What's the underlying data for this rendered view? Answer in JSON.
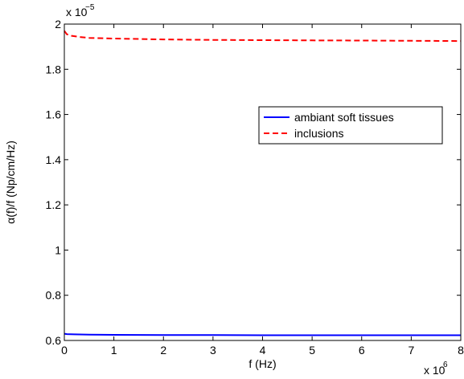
{
  "chart_data": {
    "type": "line",
    "title": "",
    "xlabel": "f (Hz)",
    "ylabel": "α(f)/f (Np/cm/Hz)",
    "x_multiplier": "x 10",
    "x_multiplier_exp": "6",
    "y_multiplier": "x 10",
    "y_multiplier_exp": "−5",
    "xlim": [
      0,
      8
    ],
    "ylim": [
      0.6,
      2.0
    ],
    "x_ticks": [
      0,
      1,
      2,
      3,
      4,
      5,
      6,
      7,
      8
    ],
    "x_tick_labels": [
      "0",
      "1",
      "2",
      "3",
      "4",
      "5",
      "6",
      "7",
      "8"
    ],
    "y_ticks": [
      0.6,
      0.8,
      1.0,
      1.2,
      1.4,
      1.6,
      1.8,
      2.0
    ],
    "y_tick_labels": [
      "0.6",
      "0.8",
      "1",
      "1.2",
      "1.4",
      "1.6",
      "1.8",
      "2"
    ],
    "grid": false,
    "legend_position": "right",
    "series": [
      {
        "name": "ambiant soft tissues",
        "color": "#0000ff",
        "style": "solid",
        "x": [
          0,
          0.05,
          0.2,
          0.5,
          1,
          2,
          3,
          4,
          5,
          6,
          7,
          8
        ],
        "y": [
          0.63,
          0.628,
          0.627,
          0.626,
          0.625,
          0.624,
          0.624,
          0.623,
          0.623,
          0.623,
          0.623,
          0.623
        ]
      },
      {
        "name": "inclusions",
        "color": "#ff0000",
        "style": "dashed",
        "x": [
          0,
          0.05,
          0.15,
          0.3,
          0.5,
          1,
          2,
          3,
          4,
          5,
          6,
          7,
          8
        ],
        "y": [
          1.97,
          1.955,
          1.948,
          1.943,
          1.939,
          1.936,
          1.932,
          1.93,
          1.929,
          1.928,
          1.927,
          1.926,
          1.925
        ]
      }
    ]
  }
}
